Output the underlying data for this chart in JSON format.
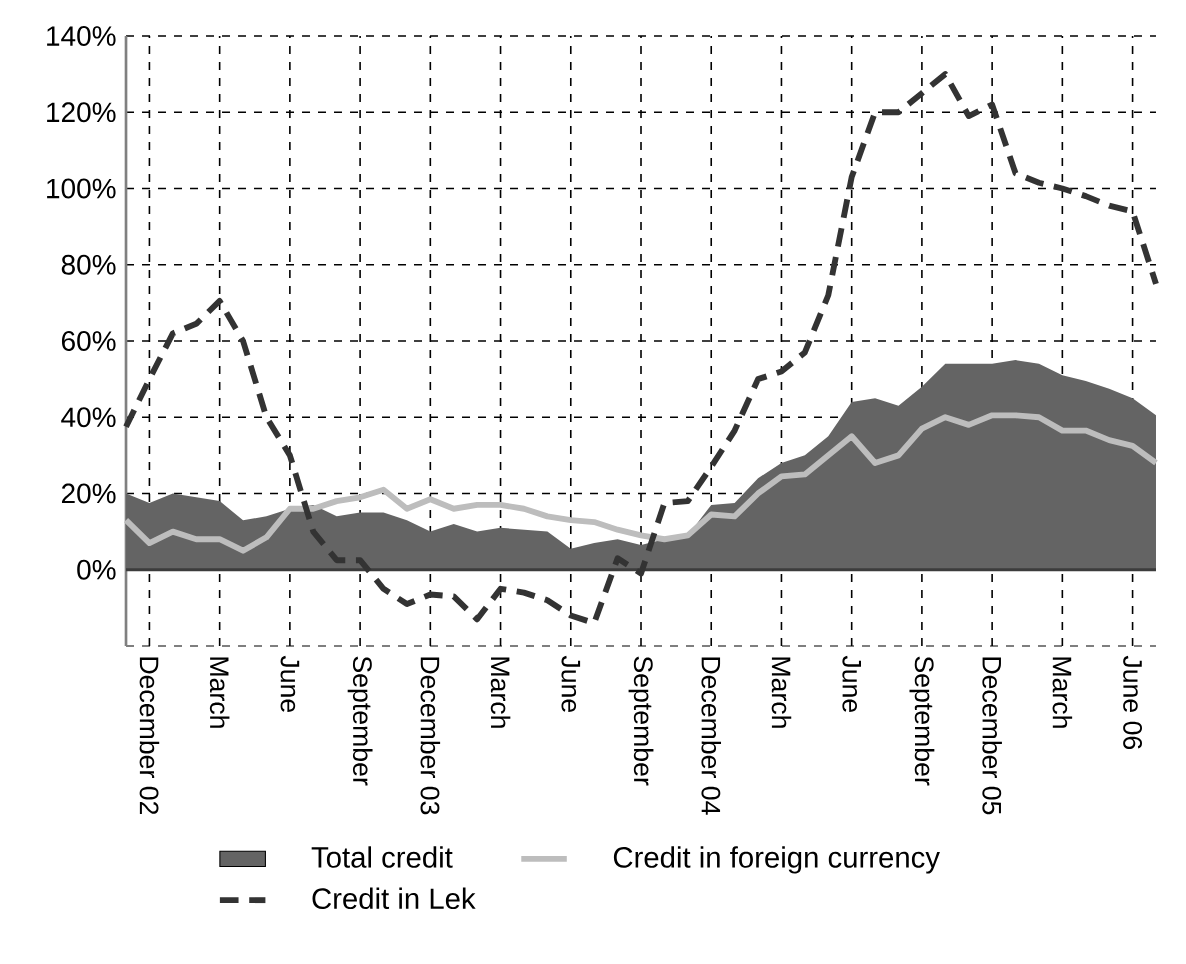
{
  "chart_data": {
    "type": "line",
    "x": [
      "2002-11",
      "2002-12",
      "2003-01",
      "2003-02",
      "2003-03",
      "2003-04",
      "2003-05",
      "2003-06",
      "2003-07",
      "2003-08",
      "2003-09",
      "2003-10",
      "2003-11",
      "2003-12",
      "2004-01",
      "2004-02",
      "2004-03",
      "2004-04",
      "2004-05",
      "2004-06",
      "2004-07",
      "2004-08",
      "2004-09",
      "2004-10",
      "2004-11",
      "2004-12",
      "2005-01",
      "2005-02",
      "2005-03",
      "2005-04",
      "2005-05",
      "2005-06",
      "2005-07",
      "2005-08",
      "2005-09",
      "2005-10",
      "2005-11",
      "2005-12",
      "2006-01",
      "2006-02",
      "2006-03",
      "2006-04",
      "2006-05",
      "2006-06",
      "2006-07"
    ],
    "series": [
      {
        "name": "Total credit",
        "type": "area",
        "color": "#646464",
        "values": [
          20,
          17.5,
          20,
          19,
          18,
          13,
          14,
          16,
          17,
          14,
          15,
          15,
          13,
          10,
          12,
          10,
          11,
          10.5,
          10,
          5.5,
          7,
          8,
          6.5,
          8,
          9,
          17,
          17.5,
          24,
          28,
          30,
          35,
          44,
          45,
          43,
          48,
          54,
          54,
          54,
          55,
          54,
          51,
          49.5,
          47.5,
          45,
          40.5
        ]
      },
      {
        "name": "Credit in foreign currency",
        "color": "#bdbdbd",
        "values": [
          13,
          7,
          10,
          8,
          8,
          5,
          8.5,
          16,
          16,
          18,
          19,
          21,
          16,
          18.5,
          16,
          17,
          17,
          16,
          14,
          13,
          12.5,
          10.5,
          9,
          8,
          9,
          14.5,
          14,
          20,
          24.5,
          25,
          30,
          35,
          28,
          30,
          37,
          40,
          38,
          40.5,
          40.5,
          40,
          36.5,
          36.5,
          34,
          32.5,
          28
        ]
      },
      {
        "name": "Credit in Lek",
        "line_style": "dashed",
        "color": "#333333",
        "values": [
          37.5,
          50,
          62,
          64.5,
          70.5,
          60,
          40,
          30,
          10,
          2.5,
          2.5,
          -5,
          -9,
          -6.5,
          -7,
          -13,
          -5,
          -6,
          -8,
          -12,
          -14,
          3,
          -1,
          17.5,
          18,
          27,
          36.5,
          50,
          52,
          57,
          72,
          103,
          120,
          120,
          125,
          130,
          119,
          122,
          104,
          101.5,
          100,
          98,
          95.5,
          94,
          75
        ]
      }
    ],
    "xlim": [
      "2002-11",
      "2006-07"
    ],
    "xticks": [
      {
        "value": "2002-12",
        "label": "December 02"
      },
      {
        "value": "2003-03",
        "label": "March"
      },
      {
        "value": "2003-06",
        "label": "June"
      },
      {
        "value": "2003-09",
        "label": "September"
      },
      {
        "value": "2003-12",
        "label": "December 03"
      },
      {
        "value": "2004-03",
        "label": "March"
      },
      {
        "value": "2004-06",
        "label": "June"
      },
      {
        "value": "2004-09",
        "label": "September"
      },
      {
        "value": "2004-12",
        "label": "December 04"
      },
      {
        "value": "2005-03",
        "label": "March"
      },
      {
        "value": "2005-06",
        "label": "June"
      },
      {
        "value": "2005-09",
        "label": "September"
      },
      {
        "value": "2005-12",
        "label": "December 05"
      },
      {
        "value": "2006-03",
        "label": "March"
      },
      {
        "value": "2006-06",
        "label": "June 06"
      }
    ],
    "ylim": [
      -20,
      140
    ],
    "yticks": [
      {
        "value": 0,
        "label": "0%"
      },
      {
        "value": 20,
        "label": "20%"
      },
      {
        "value": 40,
        "label": "40%"
      },
      {
        "value": 60,
        "label": "60%"
      },
      {
        "value": 80,
        "label": "80%"
      },
      {
        "value": 100,
        "label": "100%"
      },
      {
        "value": 120,
        "label": "120%"
      },
      {
        "value": 140,
        "label": "140%"
      }
    ],
    "grid": true,
    "legend": "bottom"
  }
}
